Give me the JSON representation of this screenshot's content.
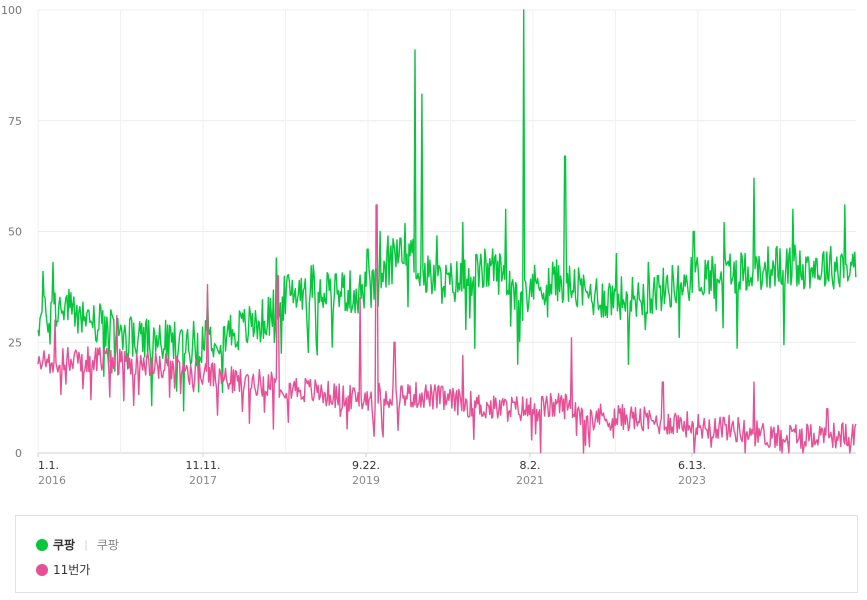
{
  "chart_data": {
    "type": "line",
    "y_axis": {
      "ylim": [
        0,
        100
      ],
      "ticks": [
        "0",
        "25",
        "50",
        "75",
        "100"
      ]
    },
    "x_axis": {
      "ticks": [
        {
          "date": "1.1.",
          "year": "2016"
        },
        {
          "date": "11.11.",
          "year": "2017"
        },
        {
          "date": "9.22.",
          "year": "2019"
        },
        {
          "date": "8.2.",
          "year": "2021"
        },
        {
          "date": "6.13.",
          "year": "2023"
        }
      ]
    },
    "grid": true,
    "series": [
      {
        "name": "쿠팡",
        "color": "#04c73b",
        "points": [
          [
            "2016-01-01",
            30
          ],
          [
            "2016-04-01",
            33
          ],
          [
            "2016-07-01",
            31
          ],
          [
            "2016-10-01",
            28
          ],
          [
            "2017-01-01",
            26
          ],
          [
            "2017-04-01",
            25
          ],
          [
            "2017-07-01",
            25
          ],
          [
            "2017-10-01",
            25
          ],
          [
            "2018-01-01",
            27
          ],
          [
            "2018-04-01",
            28
          ],
          [
            "2018-07-01",
            30
          ],
          [
            "2018-10-01",
            36
          ],
          [
            "2019-01-01",
            38
          ],
          [
            "2019-04-01",
            37
          ],
          [
            "2019-07-01",
            36
          ],
          [
            "2019-10-01",
            37
          ],
          [
            "2020-01-01",
            48
          ],
          [
            "2020-04-01",
            40
          ],
          [
            "2020-07-01",
            38
          ],
          [
            "2020-10-01",
            40
          ],
          [
            "2021-01-01",
            42
          ],
          [
            "2021-04-01",
            37
          ],
          [
            "2021-07-01",
            38
          ],
          [
            "2021-10-01",
            39
          ],
          [
            "2022-01-01",
            36
          ],
          [
            "2022-04-01",
            35
          ],
          [
            "2022-07-01",
            35
          ],
          [
            "2022-10-01",
            36
          ],
          [
            "2023-01-01",
            38
          ],
          [
            "2023-04-01",
            40
          ],
          [
            "2023-07-01",
            41
          ],
          [
            "2023-10-01",
            41
          ],
          [
            "2024-01-01",
            42
          ],
          [
            "2024-04-01",
            42
          ],
          [
            "2024-07-01",
            42
          ],
          [
            "2024-10-01",
            42
          ],
          [
            "2025-01-01",
            43
          ]
        ],
        "peaks": [
          [
            "2016-01-20",
            41
          ],
          [
            "2016-03-01",
            43
          ],
          [
            "2016-12-10",
            27
          ],
          [
            "2017-11-11",
            36
          ],
          [
            "2018-08-15",
            44
          ],
          [
            "2019-08-15",
            46
          ],
          [
            "2019-10-05",
            50
          ],
          [
            "2019-11-05",
            49
          ],
          [
            "2020-02-20",
            91
          ],
          [
            "2020-03-20",
            81
          ],
          [
            "2020-05-20",
            49
          ],
          [
            "2020-09-01",
            52
          ],
          [
            "2021-02-18",
            55
          ],
          [
            "2021-05-01",
            100
          ],
          [
            "2021-10-15",
            67
          ],
          [
            "2022-05-10",
            45
          ],
          [
            "2022-09-15",
            43
          ],
          [
            "2023-03-15",
            50
          ],
          [
            "2023-07-15",
            52
          ],
          [
            "2023-11-12",
            62
          ],
          [
            "2024-04-15",
            55
          ],
          [
            "2024-11-10",
            56
          ]
        ]
      },
      {
        "name": "11번가",
        "color": "#e85096",
        "points": [
          [
            "2016-01-01",
            20
          ],
          [
            "2016-04-01",
            21
          ],
          [
            "2016-07-01",
            21
          ],
          [
            "2016-10-01",
            21
          ],
          [
            "2017-01-01",
            20
          ],
          [
            "2017-04-01",
            20
          ],
          [
            "2017-07-01",
            19
          ],
          [
            "2017-10-01",
            18
          ],
          [
            "2018-01-01",
            17
          ],
          [
            "2018-04-01",
            16
          ],
          [
            "2018-07-01",
            16
          ],
          [
            "2018-10-01",
            15
          ],
          [
            "2019-01-01",
            14
          ],
          [
            "2019-04-01",
            13
          ],
          [
            "2019-07-01",
            12
          ],
          [
            "2019-10-01",
            13
          ],
          [
            "2020-01-01",
            13
          ],
          [
            "2020-04-01",
            13
          ],
          [
            "2020-07-01",
            12
          ],
          [
            "2020-10-01",
            11
          ],
          [
            "2021-01-01",
            10
          ],
          [
            "2021-04-01",
            10
          ],
          [
            "2021-07-01",
            10
          ],
          [
            "2021-10-01",
            11
          ],
          [
            "2022-01-01",
            9
          ],
          [
            "2022-04-01",
            8
          ],
          [
            "2022-07-01",
            8
          ],
          [
            "2022-10-01",
            7
          ],
          [
            "2023-01-01",
            7
          ],
          [
            "2023-04-01",
            6
          ],
          [
            "2023-07-01",
            6
          ],
          [
            "2023-10-01",
            5
          ],
          [
            "2024-01-01",
            4
          ],
          [
            "2024-04-01",
            4
          ],
          [
            "2024-07-01",
            4
          ],
          [
            "2024-10-01",
            4
          ],
          [
            "2025-01-01",
            4
          ]
        ],
        "peaks": [
          [
            "2016-03-10",
            30
          ],
          [
            "2016-11-11",
            31
          ],
          [
            "2017-11-11",
            38
          ],
          [
            "2018-08-20",
            40
          ],
          [
            "2019-07-15",
            35
          ],
          [
            "2019-09-20",
            56
          ],
          [
            "2019-12-01",
            25
          ],
          [
            "2020-09-01",
            22
          ],
          [
            "2021-11-11",
            26
          ],
          [
            "2022-11-11",
            16
          ],
          [
            "2023-11-11",
            16
          ],
          [
            "2024-09-01",
            10
          ]
        ]
      }
    ]
  },
  "legend": {
    "items": [
      {
        "name": "쿠팡",
        "alias": "쿠팡",
        "color": "#04c73b"
      },
      {
        "name": "11번가",
        "color": "#e85096"
      }
    ],
    "separator": "|"
  }
}
